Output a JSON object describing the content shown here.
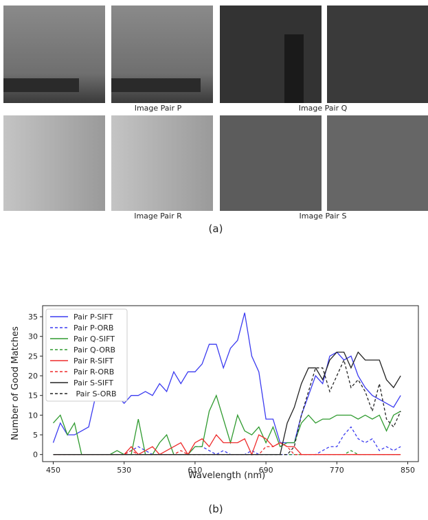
{
  "figure": {
    "image_pairs": [
      "Image Pair P",
      "Image Pair Q",
      "Image Pair R",
      "Image Pair S"
    ],
    "caption_a": "(a)",
    "caption_b": "(b)"
  },
  "chart_data": {
    "type": "line",
    "x_label": "Wavelength (nm)",
    "y_label": "Number of Good Matches",
    "x": [
      450,
      458,
      466,
      474,
      482,
      490,
      498,
      506,
      514,
      522,
      530,
      538,
      546,
      554,
      562,
      570,
      578,
      586,
      594,
      602,
      610,
      618,
      626,
      634,
      642,
      650,
      658,
      666,
      674,
      682,
      690,
      698,
      706,
      714,
      722,
      730,
      738,
      746,
      754,
      762,
      770,
      778,
      786,
      794,
      802,
      810,
      818,
      826,
      834,
      842
    ],
    "series": [
      {
        "name": "Pair P-SIFT",
        "color": "#3a3af0",
        "style": "solid",
        "values": [
          3,
          8,
          5,
          5,
          6,
          7,
          15,
          14,
          18,
          15,
          13,
          15,
          15,
          16,
          15,
          18,
          16,
          21,
          18,
          21,
          21,
          23,
          28,
          28,
          22,
          27,
          29,
          36,
          25,
          21,
          9,
          9,
          3,
          3,
          3,
          10,
          15,
          20,
          18,
          25,
          26,
          24,
          25,
          20,
          17,
          15,
          14,
          13,
          12,
          15
        ]
      },
      {
        "name": "Pair P-ORB",
        "color": "#3a3af0",
        "style": "dashed",
        "values": [
          0,
          0,
          0,
          0,
          0,
          0,
          0,
          0,
          0,
          0,
          0,
          1,
          2,
          1,
          0,
          0,
          0,
          0,
          0,
          0,
          2,
          2,
          1,
          0,
          1,
          0,
          0,
          0,
          1,
          0,
          0,
          0,
          0,
          0,
          0,
          0,
          0,
          0,
          1,
          2,
          2,
          5,
          7,
          4,
          3,
          4,
          1,
          2,
          1,
          2
        ]
      },
      {
        "name": "Pair Q-SIFT",
        "color": "#2e9a2e",
        "style": "solid",
        "values": [
          8,
          10,
          5,
          8,
          0,
          0,
          0,
          0,
          0,
          1,
          0,
          0,
          9,
          0,
          0,
          3,
          5,
          0,
          0,
          0,
          2,
          2,
          11,
          15,
          9,
          3,
          10,
          6,
          5,
          7,
          3,
          7,
          2,
          3,
          3,
          8,
          10,
          8,
          9,
          9,
          10,
          10,
          10,
          9,
          10,
          9,
          10,
          6,
          10,
          11
        ]
      },
      {
        "name": "Pair Q-ORB",
        "color": "#2e9a2e",
        "style": "dashed",
        "values": [
          0,
          0,
          0,
          0,
          0,
          0,
          0,
          0,
          0,
          0,
          0,
          0,
          0,
          0,
          0,
          0,
          0,
          0,
          0,
          0,
          0,
          0,
          0,
          0,
          0,
          0,
          0,
          0,
          0,
          0,
          0,
          0,
          0,
          0,
          0,
          0,
          0,
          0,
          0,
          0,
          0,
          0,
          1,
          0,
          0,
          0,
          0,
          0,
          0,
          0
        ]
      },
      {
        "name": "Pair R-SIFT",
        "color": "#ee2a2a",
        "style": "solid",
        "values": [
          0,
          0,
          0,
          0,
          0,
          0,
          0,
          0,
          0,
          0,
          0,
          2,
          0,
          1,
          2,
          0,
          1,
          2,
          3,
          0,
          3,
          4,
          2,
          5,
          3,
          3,
          3,
          4,
          0,
          5,
          4,
          2,
          3,
          2,
          2,
          0,
          0,
          0,
          0,
          0,
          0,
          0,
          0,
          0,
          0,
          0,
          0,
          0,
          0,
          0
        ]
      },
      {
        "name": "Pair R-ORB",
        "color": "#ee2a2a",
        "style": "dashed",
        "values": [
          0,
          0,
          0,
          0,
          0,
          0,
          0,
          0,
          0,
          0,
          0,
          1,
          0,
          0,
          0,
          0,
          0,
          0,
          1,
          0,
          0,
          0,
          0,
          0,
          0,
          0,
          0,
          0,
          0,
          0,
          2,
          2,
          3,
          2,
          0,
          0,
          0,
          0,
          0,
          0,
          0,
          0,
          0,
          0,
          0,
          0,
          0,
          0,
          0,
          0
        ]
      },
      {
        "name": "Pair S-SIFT",
        "color": "#222222",
        "style": "solid",
        "values": [
          0,
          0,
          0,
          0,
          0,
          0,
          0,
          0,
          0,
          0,
          0,
          0,
          0,
          0,
          0,
          0,
          0,
          0,
          0,
          0,
          0,
          0,
          0,
          0,
          0,
          0,
          0,
          0,
          0,
          0,
          0,
          0,
          0,
          8,
          12,
          18,
          22,
          22,
          19,
          24,
          26,
          26,
          22,
          26,
          24,
          24,
          24,
          19,
          17,
          20
        ]
      },
      {
        "name": " Pair S-ORB",
        "color": "#222222",
        "style": "dashed",
        "values": [
          0,
          0,
          0,
          0,
          0,
          0,
          0,
          0,
          0,
          0,
          0,
          0,
          0,
          0,
          0,
          0,
          0,
          0,
          0,
          0,
          0,
          0,
          0,
          0,
          0,
          0,
          0,
          0,
          0,
          0,
          0,
          0,
          0,
          0,
          2,
          10,
          16,
          22,
          22,
          16,
          20,
          24,
          17,
          19,
          16,
          11,
          18,
          9,
          7,
          11
        ]
      }
    ],
    "xlim": [
      438,
      862
    ],
    "ylim": [
      -1.8,
      37.8
    ],
    "xticks": [
      450,
      530,
      610,
      690,
      770,
      850
    ],
    "yticks": [
      0,
      5,
      10,
      15,
      20,
      25,
      30,
      35
    ],
    "legend": "upper-left"
  }
}
